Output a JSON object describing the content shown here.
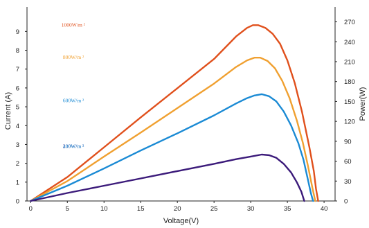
{
  "chart_data": {
    "type": "line",
    "title": "",
    "xlabel": "Voltage(V)",
    "ylabel_left": "Current (A)",
    "ylabel_right": "Power(W)",
    "xlim": [
      -0.5,
      41.5
    ],
    "ylim_left": [
      0,
      10.3
    ],
    "ylim_right": [
      0,
      292.5
    ],
    "x_ticks": [
      0,
      5,
      10,
      15,
      20,
      25,
      30,
      35,
      40
    ],
    "y_left_ticks": [
      0,
      1,
      2,
      3,
      4,
      5,
      6,
      7,
      8,
      9
    ],
    "y_right_ticks": [
      0,
      30,
      60,
      90,
      120,
      150,
      180,
      210,
      240,
      270
    ],
    "grid": false,
    "series": [
      {
        "name": "1000W/m ²",
        "color": "#e0501c",
        "label_x": 4.2,
        "label_y_current": 9.25,
        "points": [
          [
            0,
            0
          ],
          [
            5,
            36
          ],
          [
            10,
            81
          ],
          [
            15,
            126
          ],
          [
            20,
            170
          ],
          [
            25,
            214
          ],
          [
            28,
            248
          ],
          [
            29.5,
            261
          ],
          [
            30.3,
            265
          ],
          [
            31,
            265
          ],
          [
            32,
            261
          ],
          [
            33,
            252
          ],
          [
            34,
            237
          ],
          [
            35,
            212
          ],
          [
            36,
            178
          ],
          [
            37,
            134
          ],
          [
            38,
            81
          ],
          [
            38.6,
            45
          ],
          [
            38.9,
            18
          ],
          [
            39.2,
            0
          ]
        ]
      },
      {
        "name": "800W/m ²",
        "color": "#f0a030",
        "label_x": 4.4,
        "label_y_current": 7.55,
        "points": [
          [
            0,
            0
          ],
          [
            5,
            30
          ],
          [
            10,
            67
          ],
          [
            15,
            103
          ],
          [
            20,
            140
          ],
          [
            25,
            177
          ],
          [
            28,
            202
          ],
          [
            29.5,
            212
          ],
          [
            30.5,
            216
          ],
          [
            31.3,
            216
          ],
          [
            32.3,
            211
          ],
          [
            33.3,
            200
          ],
          [
            34.3,
            181
          ],
          [
            35.3,
            155
          ],
          [
            36.3,
            121
          ],
          [
            37.1,
            88
          ],
          [
            37.8,
            53
          ],
          [
            38.4,
            20
          ],
          [
            38.8,
            0
          ]
        ]
      },
      {
        "name": "600W/m ²",
        "color": "#1a8ad4",
        "label_x": 4.4,
        "label_y_current": 5.25,
        "points": [
          [
            0,
            0
          ],
          [
            5,
            23
          ],
          [
            10,
            49
          ],
          [
            15,
            76
          ],
          [
            20,
            102
          ],
          [
            25,
            129
          ],
          [
            28,
            147
          ],
          [
            29.5,
            155
          ],
          [
            30.5,
            159
          ],
          [
            31.5,
            161
          ],
          [
            32.5,
            158
          ],
          [
            33.5,
            150
          ],
          [
            34.5,
            135
          ],
          [
            35.5,
            114
          ],
          [
            36.5,
            87
          ],
          [
            37.2,
            62
          ],
          [
            37.8,
            32
          ],
          [
            38.2,
            12
          ],
          [
            38.5,
            0
          ]
        ]
      },
      {
        "name": "200W/m ²",
        "color": "#3b1a7a",
        "label_x": 4.4,
        "label_y_current": 2.82,
        "points": [
          [
            0,
            0
          ],
          [
            5,
            12
          ],
          [
            10,
            23
          ],
          [
            15,
            34
          ],
          [
            20,
            45
          ],
          [
            25,
            56
          ],
          [
            28,
            63
          ],
          [
            30,
            67
          ],
          [
            31.5,
            70
          ],
          [
            32.5,
            69
          ],
          [
            33.5,
            65
          ],
          [
            34.5,
            56
          ],
          [
            35.5,
            43
          ],
          [
            36.3,
            28
          ],
          [
            36.9,
            14
          ],
          [
            37.3,
            0
          ]
        ]
      },
      {
        "name": "400W/m ²",
        "color": "#1a8ad4",
        "label_x": 4.4,
        "label_y_current": 2.82,
        "points": []
      }
    ]
  }
}
